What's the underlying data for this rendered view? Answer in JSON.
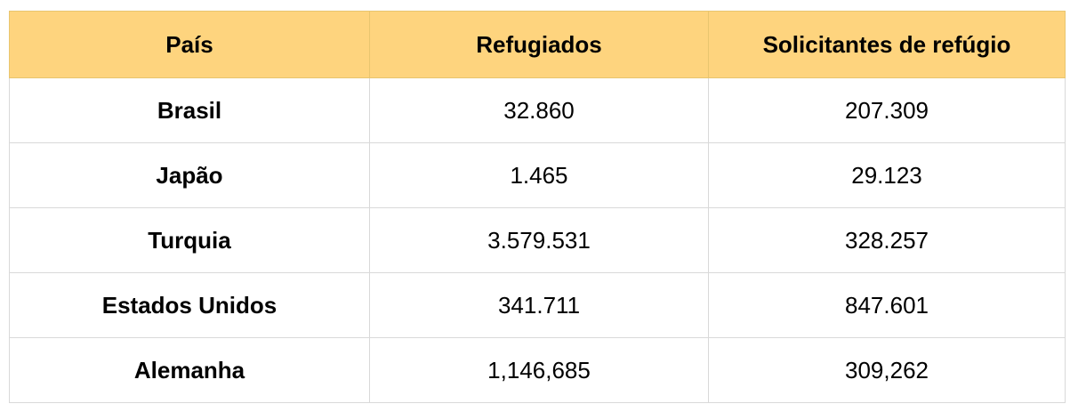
{
  "table": {
    "headers": [
      "País",
      "Refugiados",
      "Solicitantes de refúgio"
    ],
    "rows": [
      {
        "country": "Brasil",
        "refugees": "32.860",
        "asylum_seekers": "207.309"
      },
      {
        "country": "Japão",
        "refugees": "1.465",
        "asylum_seekers": "29.123"
      },
      {
        "country": "Turquia",
        "refugees": "3.579.531",
        "asylum_seekers": "328.257"
      },
      {
        "country": "Estados Unidos",
        "refugees": "341.711",
        "asylum_seekers": "847.601"
      },
      {
        "country": "Alemanha",
        "refugees": "1,146,685",
        "asylum_seekers": "309,262"
      }
    ]
  },
  "colors": {
    "header_background": "#fed47e",
    "grid_lines": "#d9d9d9"
  }
}
